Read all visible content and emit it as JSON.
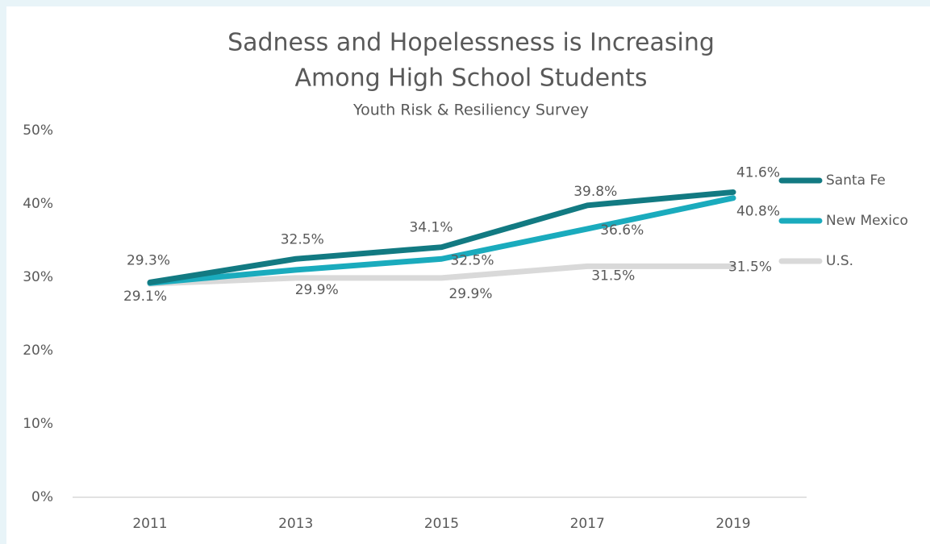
{
  "chart_data": {
    "type": "line",
    "title": [
      "Sadness and Hopelessness is Increasing",
      "Among High School Students"
    ],
    "subtitle": "Youth Risk & Resiliency Survey",
    "categories": [
      "2011",
      "2013",
      "2015",
      "2017",
      "2019"
    ],
    "series": [
      {
        "name": "Santa Fe",
        "color": "#127a82",
        "values": [
          29.3,
          32.5,
          34.1,
          39.8,
          41.6
        ],
        "value_labels": [
          "29.3%",
          "32.5%",
          "34.1%",
          "39.8%",
          "41.6%"
        ]
      },
      {
        "name": "New Mexico",
        "color": "#1aabbd",
        "values": [
          29.2,
          31.0,
          32.5,
          36.6,
          40.8
        ],
        "value_labels": [
          null,
          null,
          "32.5%",
          "36.6%",
          "40.8%"
        ]
      },
      {
        "name": "U.S.",
        "color": "#d9d9d9",
        "values": [
          29.1,
          29.9,
          29.9,
          31.5,
          31.5
        ],
        "value_labels": [
          "29.1%",
          "29.9%",
          "29.9%",
          "31.5%",
          "31.5%"
        ]
      }
    ],
    "ylim": [
      0,
      50
    ],
    "yticks": [
      {
        "value": 0,
        "label": "0%"
      },
      {
        "value": 10,
        "label": "10%"
      },
      {
        "value": 20,
        "label": "20%"
      },
      {
        "value": 30,
        "label": "30%"
      },
      {
        "value": 40,
        "label": "40%"
      },
      {
        "value": 50,
        "label": "50%"
      }
    ],
    "grid": false,
    "legend": "right"
  }
}
